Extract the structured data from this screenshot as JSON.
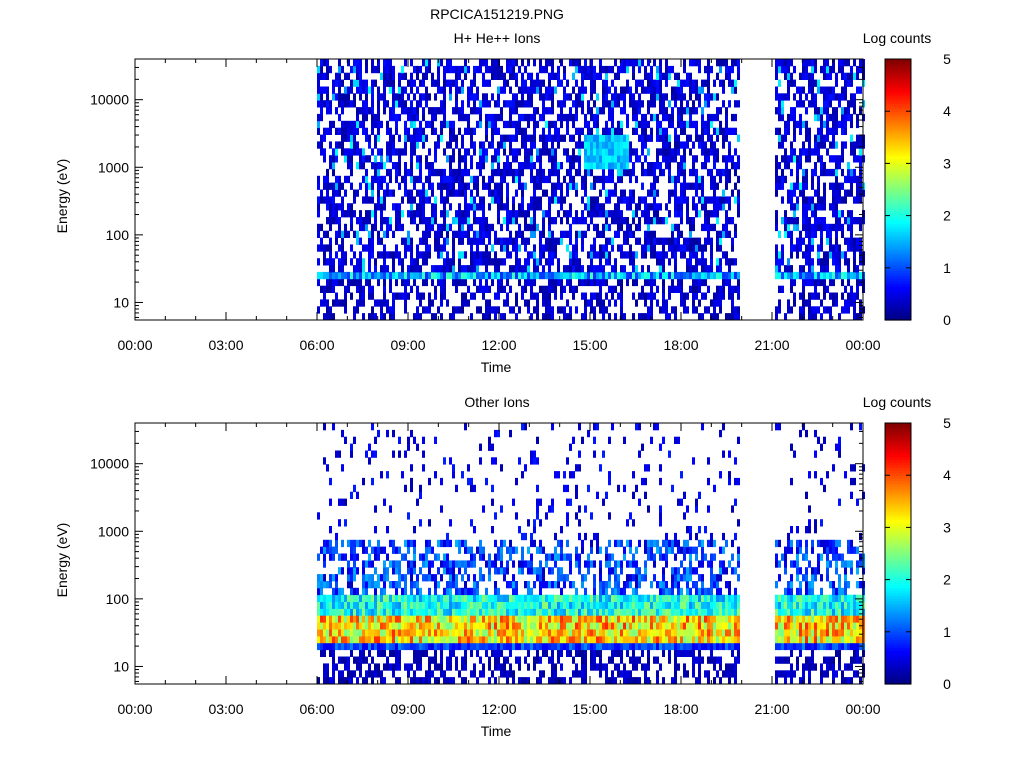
{
  "figure_title": "RPCICA151219.PNG",
  "colors": {
    "jet": [
      "#00007f",
      "#0000ff",
      "#007fff",
      "#00ffff",
      "#7fff7f",
      "#ffff00",
      "#ff7f00",
      "#ff0000",
      "#7f0000"
    ],
    "gap": "#ffffff"
  },
  "chart_data": [
    {
      "type": "heatmap",
      "title": "H+ He++ Ions",
      "xlabel": "Time",
      "ylabel": "Energy (eV)",
      "colorbar_label": "Log counts",
      "yscale": "log",
      "xlim_hours": [
        0,
        24
      ],
      "ylim_eV": [
        5.5,
        40000
      ],
      "x_ticks": [
        "00:00",
        "03:00",
        "06:00",
        "09:00",
        "12:00",
        "15:00",
        "18:00",
        "21:00",
        "00:00"
      ],
      "y_ticks": [
        {
          "value": 10,
          "label": "10"
        },
        {
          "value": 100,
          "label": "100"
        },
        {
          "value": 1000,
          "label": "1000"
        },
        {
          "value": 10000,
          "label": "10000"
        }
      ],
      "colorbar_ticks": [
        "0",
        "1",
        "2",
        "3",
        "4",
        "5"
      ],
      "colorbar_range": [
        0,
        5
      ],
      "data_intervals": [
        {
          "start": 6.0,
          "end": 19.9
        },
        {
          "start": 21.1,
          "end": 24.0
        }
      ],
      "grid": false
    },
    {
      "type": "heatmap",
      "title": "Other Ions",
      "xlabel": "Time",
      "ylabel": "Energy (eV)",
      "colorbar_label": "Log counts",
      "yscale": "log",
      "xlim_hours": [
        0,
        24
      ],
      "ylim_eV": [
        5.5,
        40000
      ],
      "x_ticks": [
        "00:00",
        "03:00",
        "06:00",
        "09:00",
        "12:00",
        "15:00",
        "18:00",
        "21:00",
        "00:00"
      ],
      "y_ticks": [
        {
          "value": 10,
          "label": "10"
        },
        {
          "value": 100,
          "label": "100"
        },
        {
          "value": 1000,
          "label": "1000"
        },
        {
          "value": 10000,
          "label": "10000"
        }
      ],
      "colorbar_ticks": [
        "0",
        "1",
        "2",
        "3",
        "4",
        "5"
      ],
      "colorbar_range": [
        0,
        5
      ],
      "data_intervals": [
        {
          "start": 6.0,
          "end": 19.9
        },
        {
          "start": 21.1,
          "end": 24.0
        }
      ],
      "grid": false
    }
  ]
}
